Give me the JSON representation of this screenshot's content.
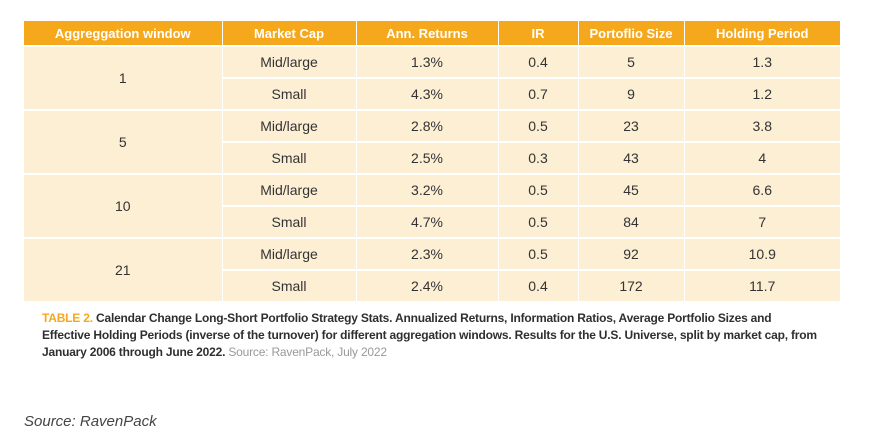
{
  "table": {
    "headers": [
      "Aggreggation window",
      "Market Cap",
      "Ann. Returns",
      "IR",
      "Portoflio Size",
      "Holding Period"
    ],
    "groups": [
      {
        "window": "1",
        "rows": [
          {
            "cap": "Mid/large",
            "returns": "1.3%",
            "ir": "0.4",
            "size": "5",
            "holding": "1.3"
          },
          {
            "cap": "Small",
            "returns": "4.3%",
            "ir": "0.7",
            "size": "9",
            "holding": "1.2"
          }
        ]
      },
      {
        "window": "5",
        "rows": [
          {
            "cap": "Mid/large",
            "returns": "2.8%",
            "ir": "0.5",
            "size": "23",
            "holding": "3.8"
          },
          {
            "cap": "Small",
            "returns": "2.5%",
            "ir": "0.3",
            "size": "43",
            "holding": "4"
          }
        ]
      },
      {
        "window": "10",
        "rows": [
          {
            "cap": "Mid/large",
            "returns": "3.2%",
            "ir": "0.5",
            "size": "45",
            "holding": "6.6"
          },
          {
            "cap": "Small",
            "returns": "4.7%",
            "ir": "0.5",
            "size": "84",
            "holding": "7"
          }
        ]
      },
      {
        "window": "21",
        "rows": [
          {
            "cap": "Mid/large",
            "returns": "2.3%",
            "ir": "0.5",
            "size": "92",
            "holding": "10.9"
          },
          {
            "cap": "Small",
            "returns": "2.4%",
            "ir": "0.4",
            "size": "172",
            "holding": "11.7"
          }
        ]
      }
    ]
  },
  "caption": {
    "label": "TABLE 2.",
    "text": "Calendar Change Long-Short Portfolio Strategy Stats. Annualized Returns, Information Ratios, Average Portfolio Sizes and Effective Holding Periods (inverse of the turnover) for different aggregation windows. Results for the U.S. Universe, split by market cap, from January 2006 through June 2022.",
    "source": "Source: RavenPack, July 2022"
  },
  "footer": {
    "source": "Source: RavenPack"
  },
  "colors": {
    "header_bg": "#f5a81c",
    "cell_bg": "#fdefd4"
  }
}
